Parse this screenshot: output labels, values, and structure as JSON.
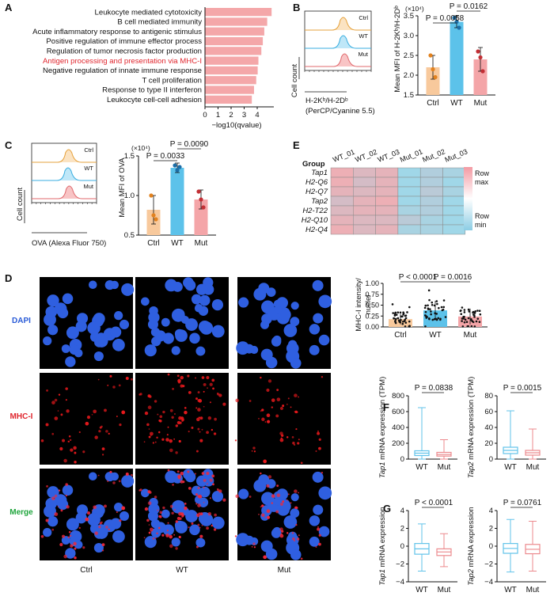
{
  "panels": {
    "A": {
      "letter": "A",
      "terms": [
        {
          "label": "Leukocyte mediated cytotoxicity",
          "value": 4.55,
          "highlight": false
        },
        {
          "label": "B cell mediated immunity",
          "value": 4.25,
          "highlight": false
        },
        {
          "label": "Acute inflammatory response to antigenic stimulus",
          "value": 4.05,
          "highlight": false
        },
        {
          "label": "Positive regulation of immune effector process",
          "value": 3.95,
          "highlight": false
        },
        {
          "label": "Regulation of tumor necrosis factor production",
          "value": 3.85,
          "highlight": false
        },
        {
          "label": "Antigen processing and presentation via MHC-I",
          "value": 3.65,
          "highlight": true
        },
        {
          "label": "Negative regulation of innate immune response",
          "value": 3.6,
          "highlight": false
        },
        {
          "label": "T cell proliferation",
          "value": 3.5,
          "highlight": false
        },
        {
          "label": "Response to type II interferon",
          "value": 3.35,
          "highlight": false
        },
        {
          "label": "Leukocyte cell-cell adhesion",
          "value": 3.2,
          "highlight": false
        }
      ],
      "xticks": [
        "0",
        "1",
        "2",
        "3",
        "4"
      ],
      "xlabel": "−log10(qvalue)"
    },
    "B": {
      "letter": "B",
      "hist_labels": [
        "Ctrl",
        "WT",
        "Mut"
      ],
      "ylabel_hist": "Cell count",
      "xlabel_hist_1": "H-2Kᵇ/H-2Dᵇ",
      "xlabel_hist_2": "(PerCP/Cyanine 5.5)",
      "scale": "(×10⁴)",
      "ylabel": "Mean MFI of H-2Kᵇ/H-2Dᵇ",
      "yticks": [
        "1.5",
        "2.0",
        "2.5",
        "3.0",
        "3.5"
      ],
      "categories": [
        "Ctrl",
        "WT",
        "Mut"
      ],
      "p1": "P = 0.0058",
      "p2": "P = 0.0162"
    },
    "C": {
      "letter": "C",
      "hist_labels": [
        "Ctrl",
        "WT",
        "Mut"
      ],
      "ylabel_hist": "Cell count",
      "xlabel_hist": "OVA (Alexa Fluor 750)",
      "scale": "(×10⁴)",
      "ylabel": "Mean MFI of OVA",
      "yticks": [
        "0.5",
        "1.0",
        "1.5"
      ],
      "categories": [
        "Ctrl",
        "WT",
        "Mut"
      ],
      "p1": "P = 0.0033",
      "p2": "P = 0.0090"
    },
    "D": {
      "letter": "D",
      "rows": [
        "DAPI",
        "MHC-I",
        "Merge"
      ],
      "cols": [
        "Ctrl",
        "WT",
        "Mut"
      ],
      "ylabel_1": "MHC-I intensity/",
      "ylabel_2": "nuclei",
      "yticks": [
        "0.00",
        "0.25",
        "0.50",
        "0.75",
        "1.00"
      ],
      "categories": [
        "Ctrl",
        "WT",
        "Mut"
      ],
      "p1": "P < 0.0001",
      "p2": "P = 0.0016"
    },
    "E": {
      "letter": "E",
      "group_label": "Group",
      "columns": [
        "WT_01",
        "WT_02",
        "WT_03",
        "Mut_01",
        "Mut_02",
        "Mut_03"
      ],
      "genes": [
        "Tap1",
        "H2-Q6",
        "H2-Q7",
        "Tap2",
        "H2-T22",
        "H2-Q10",
        "H2-Q4"
      ],
      "legend_max_1": "Row",
      "legend_max_2": "max",
      "legend_min_1": "Row",
      "legend_min_2": "min"
    },
    "F": {
      "letter": "F",
      "left_gene": "Tap1",
      "right_gene": "Tap2",
      "ylabel_suffix": " mRNA expression (TPM)",
      "left_yticks": [
        "0",
        "200",
        "400",
        "600",
        "800"
      ],
      "right_yticks": [
        "0",
        "20",
        "40",
        "60",
        "80"
      ],
      "categories": [
        "WT",
        "Mut"
      ],
      "left_p": "P = 0.0838",
      "right_p": "P = 0.0015"
    },
    "G": {
      "letter": "G",
      "left_gene": "Tap1",
      "right_gene": "Tap2",
      "ylabel_suffix": " mRNA expression",
      "yticks": [
        "−4",
        "−2",
        "0",
        "2",
        "4"
      ],
      "categories": [
        "WT",
        "Mut"
      ],
      "left_p": "P < 0.0001",
      "right_p": "P = 0.0761"
    }
  },
  "chart_data": [
    {
      "type": "bar",
      "panel": "A",
      "categories": [
        "Leukocyte mediated cytotoxicity",
        "B cell mediated immunity",
        "Acute inflammatory response to antigenic stimulus",
        "Positive regulation of immune effector process",
        "Regulation of tumor necrosis factor production",
        "Antigen processing and presentation via MHC-I",
        "Negative regulation of innate immune response",
        "T cell proliferation",
        "Response to type II interferon",
        "Leukocyte cell-cell adhesion"
      ],
      "values": [
        4.55,
        4.25,
        4.05,
        3.95,
        3.85,
        3.65,
        3.6,
        3.5,
        3.35,
        3.2
      ],
      "xlabel": "−log10(qvalue)",
      "xlim": [
        0,
        4.7
      ]
    },
    {
      "type": "bar",
      "panel": "B",
      "categories": [
        "Ctrl",
        "WT",
        "Mut"
      ],
      "values": [
        2.2,
        3.35,
        2.4
      ],
      "errors": [
        0.3,
        0.15,
        0.3
      ],
      "points": [
        [
          2.5,
          2.15,
          1.95
        ],
        [
          3.45,
          3.35,
          3.2
        ],
        [
          2.6,
          2.45,
          2.1
        ]
      ],
      "ylabel": "Mean MFI of H-2Kᵇ/H-2Dᵇ",
      "ylim": [
        1.5,
        3.5
      ]
    },
    {
      "type": "bar",
      "panel": "C",
      "categories": [
        "Ctrl",
        "WT",
        "Mut"
      ],
      "values": [
        0.82,
        1.35,
        0.95
      ],
      "errors": [
        0.18,
        0.06,
        0.12
      ],
      "points": [
        [
          1.0,
          0.75,
          0.7
        ],
        [
          1.38,
          1.32,
          1.36
        ],
        [
          1.05,
          0.95,
          0.85
        ]
      ],
      "ylabel": "Mean MFI of OVA",
      "ylim": [
        0.5,
        1.5
      ]
    },
    {
      "type": "heatmap",
      "panel": "E",
      "columns": [
        "WT_01",
        "WT_02",
        "WT_03",
        "Mut_01",
        "Mut_02",
        "Mut_03"
      ],
      "rows": [
        "Tap1",
        "H2-Q6",
        "H2-Q7",
        "Tap2",
        "H2-T22",
        "H2-Q10",
        "H2-Q4"
      ],
      "values": [
        [
          0.9,
          0.7,
          0.8,
          0.0,
          0.2,
          0.1
        ],
        [
          0.9,
          0.6,
          0.8,
          0.0,
          0.2,
          0.0
        ],
        [
          0.8,
          0.7,
          0.8,
          0.0,
          0.3,
          0.1
        ],
        [
          0.6,
          0.8,
          0.9,
          0.0,
          0.2,
          0.0
        ],
        [
          0.7,
          0.8,
          0.8,
          0.1,
          0.2,
          0.0
        ],
        [
          0.8,
          0.7,
          0.7,
          0.3,
          0.1,
          0.0
        ],
        [
          0.9,
          0.7,
          0.8,
          0.1,
          0.1,
          0.0
        ]
      ]
    },
    {
      "type": "bar",
      "panel": "D",
      "categories": [
        "Ctrl",
        "WT",
        "Mut"
      ],
      "values": [
        0.18,
        0.38,
        0.24
      ],
      "errors": [
        0.12,
        0.22,
        0.18
      ],
      "ylabel": "MHC-I intensity/nuclei",
      "ylim": [
        0,
        1.0
      ]
    },
    {
      "type": "box",
      "panel": "F-left",
      "categories": [
        "WT",
        "Mut"
      ],
      "boxes": [
        {
          "min": 0,
          "q1": 45,
          "median": 75,
          "q3": 105,
          "max": 650
        },
        {
          "min": 0,
          "q1": 38,
          "median": 58,
          "q3": 85,
          "max": 245
        }
      ],
      "ylim": [
        0,
        800
      ]
    },
    {
      "type": "box",
      "panel": "F-right",
      "categories": [
        "WT",
        "Mut"
      ],
      "boxes": [
        {
          "min": 0,
          "q1": 7,
          "median": 11,
          "q3": 15,
          "max": 61
        },
        {
          "min": 0,
          "q1": 5,
          "median": 8,
          "q3": 11,
          "max": 38
        }
      ],
      "ylim": [
        0,
        80
      ]
    },
    {
      "type": "box",
      "panel": "G-left",
      "categories": [
        "WT",
        "Mut"
      ],
      "boxes": [
        {
          "min": -2.8,
          "q1": -0.9,
          "median": -0.3,
          "q3": 0.3,
          "max": 2.5
        },
        {
          "min": -2.3,
          "q1": -1.05,
          "median": -0.65,
          "q3": -0.3,
          "max": 1.4
        }
      ],
      "ylim": [
        -4,
        4
      ]
    },
    {
      "type": "box",
      "panel": "G-right",
      "categories": [
        "WT",
        "Mut"
      ],
      "boxes": [
        {
          "min": -2.9,
          "q1": -0.8,
          "median": -0.25,
          "q3": 0.3,
          "max": 3.0
        },
        {
          "min": -2.8,
          "q1": -0.85,
          "median": -0.35,
          "q3": 0.2,
          "max": 2.8
        }
      ],
      "ylim": [
        -4,
        4
      ]
    }
  ]
}
